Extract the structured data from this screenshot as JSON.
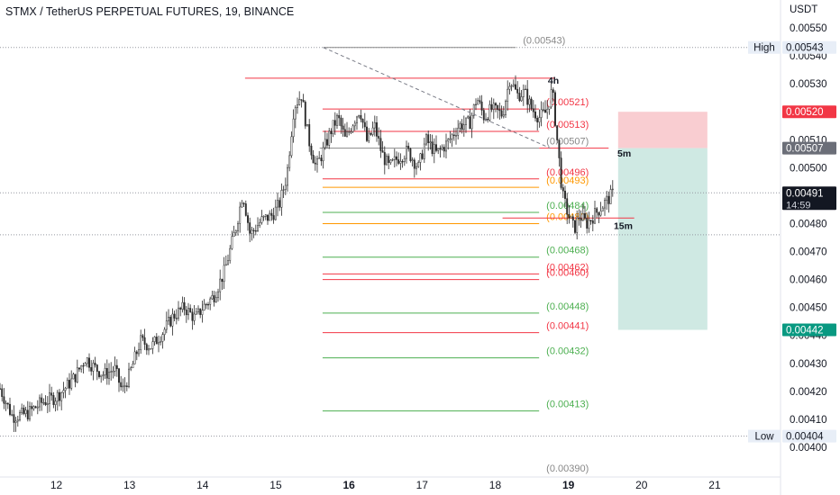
{
  "header": {
    "title": "STMX / TetherUS PERPETUAL FUTURES, 19, BINANCE"
  },
  "colors": {
    "candle": "#2a2a2a",
    "red": "#f23645",
    "green": "#4caf50",
    "orange": "#ff9800",
    "gray_label": "#888888",
    "stop_zone": "#f9cdd1",
    "target_zone": "#cfe9e3",
    "entry_tag": "#6b6e78",
    "stop_tag": "#f23645",
    "target_tag": "#089981",
    "last_tag": "#131722"
  },
  "chart_data": {
    "type": "candlestick",
    "symbol": "STMX / TetherUS PERPETUAL FUTURES",
    "timeframe": "19",
    "exchange": "BINANCE",
    "y_unit": "USDT",
    "ylim": [
      0.0039,
      0.00555
    ],
    "x_ticks": [
      {
        "label": "12",
        "x": 12,
        "bold": false
      },
      {
        "label": "13",
        "x": 13,
        "bold": false
      },
      {
        "label": "14",
        "x": 14,
        "bold": false
      },
      {
        "label": "15",
        "x": 15,
        "bold": false
      },
      {
        "label": "16",
        "x": 16,
        "bold": true
      },
      {
        "label": "17",
        "x": 17,
        "bold": false
      },
      {
        "label": "18",
        "x": 18,
        "bold": false
      },
      {
        "label": "19",
        "x": 19,
        "bold": true
      },
      {
        "label": "20",
        "x": 20,
        "bold": false
      },
      {
        "label": "21",
        "x": 21,
        "bold": false
      }
    ],
    "xlim": [
      11.23,
      21.9
    ],
    "y_ticks": [
      "0.00550",
      "0.00540",
      "0.00530",
      "0.00520",
      "0.00510",
      "0.00500",
      "0.00490",
      "0.00480",
      "0.00470",
      "0.00460",
      "0.00450",
      "0.00440",
      "0.00430",
      "0.00420",
      "0.00410",
      "0.00400"
    ],
    "price_path": [
      [
        11.23,
        0.00421
      ],
      [
        11.4,
        0.00411
      ],
      [
        11.6,
        0.00412
      ],
      [
        11.8,
        0.00416
      ],
      [
        12.0,
        0.00418
      ],
      [
        12.15,
        0.00422
      ],
      [
        12.25,
        0.00425
      ],
      [
        12.4,
        0.00432
      ],
      [
        12.5,
        0.00429
      ],
      [
        12.65,
        0.00426
      ],
      [
        12.8,
        0.00428
      ],
      [
        12.9,
        0.0042
      ],
      [
        13.0,
        0.00426
      ],
      [
        13.15,
        0.00438
      ],
      [
        13.3,
        0.00436
      ],
      [
        13.45,
        0.00441
      ],
      [
        13.6,
        0.00447
      ],
      [
        13.75,
        0.0045
      ],
      [
        13.9,
        0.00446
      ],
      [
        14.0,
        0.0045
      ],
      [
        14.15,
        0.00454
      ],
      [
        14.3,
        0.00463
      ],
      [
        14.45,
        0.00478
      ],
      [
        14.55,
        0.00491
      ],
      [
        14.65,
        0.00476
      ],
      [
        14.8,
        0.00481
      ],
      [
        14.95,
        0.00483
      ],
      [
        15.05,
        0.00487
      ],
      [
        15.15,
        0.00497
      ],
      [
        15.25,
        0.00522
      ],
      [
        15.35,
        0.00526
      ],
      [
        15.45,
        0.0051
      ],
      [
        15.55,
        0.005
      ],
      [
        15.65,
        0.00506
      ],
      [
        15.75,
        0.00513
      ],
      [
        15.85,
        0.00518
      ],
      [
        15.95,
        0.0051
      ],
      [
        16.05,
        0.00516
      ],
      [
        16.15,
        0.00521
      ],
      [
        16.25,
        0.00509
      ],
      [
        16.35,
        0.00515
      ],
      [
        16.45,
        0.00505
      ],
      [
        16.55,
        0.005
      ],
      [
        16.65,
        0.00503
      ],
      [
        16.8,
        0.00506
      ],
      [
        16.95,
        0.005
      ],
      [
        17.05,
        0.0051
      ],
      [
        17.2,
        0.00505
      ],
      [
        17.35,
        0.00509
      ],
      [
        17.5,
        0.00515
      ],
      [
        17.65,
        0.00516
      ],
      [
        17.75,
        0.00525
      ],
      [
        17.85,
        0.00518
      ],
      [
        17.95,
        0.00521
      ],
      [
        18.1,
        0.00519
      ],
      [
        18.2,
        0.00532
      ],
      [
        18.3,
        0.00526
      ],
      [
        18.4,
        0.00527
      ],
      [
        18.5,
        0.00521
      ],
      [
        18.6,
        0.00518
      ],
      [
        18.7,
        0.0052
      ],
      [
        18.78,
        0.00528
      ],
      [
        18.85,
        0.00509
      ],
      [
        18.92,
        0.0049
      ],
      [
        19.0,
        0.00483
      ],
      [
        19.08,
        0.00478
      ],
      [
        19.15,
        0.00483
      ],
      [
        19.25,
        0.0048
      ],
      [
        19.35,
        0.00483
      ],
      [
        19.45,
        0.00486
      ],
      [
        19.55,
        0.00489
      ],
      [
        19.62,
        0.00491
      ]
    ],
    "levels": [
      {
        "label": "(0.00543)",
        "value": 0.00543,
        "color": "gray",
        "x0": 15.65,
        "x1": 18.28
      },
      {
        "label": "(0.00521)",
        "value": 0.00521,
        "color": "red",
        "x0": 15.64,
        "x1": 18.6
      },
      {
        "label": "(0.00513)",
        "value": 0.00513,
        "color": "red",
        "x0": 15.64,
        "x1": 18.6
      },
      {
        "label": "(0.00507)",
        "value": 0.00507,
        "color": "gray",
        "x0": 15.6,
        "x1": 18.6
      },
      {
        "label": "(0.00496)",
        "value": 0.00496,
        "color": "red",
        "x0": 15.64,
        "x1": 18.6
      },
      {
        "label": "(0.00493)",
        "value": 0.00493,
        "color": "orange",
        "x0": 15.64,
        "x1": 18.6
      },
      {
        "label": "(0.00484)",
        "value": 0.00484,
        "color": "green",
        "x0": 15.64,
        "x1": 18.6
      },
      {
        "label": "(0.00480)",
        "value": 0.0048,
        "color": "orange",
        "x0": 15.64,
        "x1": 18.6
      },
      {
        "label": "(0.00468)",
        "value": 0.00468,
        "color": "green",
        "x0": 15.64,
        "x1": 18.6
      },
      {
        "label": "(0.00462)",
        "value": 0.00462,
        "color": "red",
        "x0": 15.64,
        "x1": 18.6
      },
      {
        "label": "(0.00460)",
        "value": 0.0046,
        "color": "red",
        "x0": 15.64,
        "x1": 18.6
      },
      {
        "label": "(0.00448)",
        "value": 0.00448,
        "color": "green",
        "x0": 15.64,
        "x1": 18.6
      },
      {
        "label": "(0.00441)",
        "value": 0.00441,
        "color": "red",
        "x0": 15.64,
        "x1": 18.6
      },
      {
        "label": "(0.00432)",
        "value": 0.00432,
        "color": "green",
        "x0": 15.64,
        "x1": 18.6
      },
      {
        "label": "(0.00413)",
        "value": 0.00413,
        "color": "green",
        "x0": 15.64,
        "x1": 18.6
      },
      {
        "label": "(0.00390)",
        "value": 0.0039,
        "color": "gray",
        "x0": 15.64,
        "x1": 18.6
      }
    ],
    "extra_lines": [
      {
        "value": 0.00532,
        "color": "red",
        "x0": 14.58,
        "x1": 18.82
      },
      {
        "value": 0.00507,
        "color": "red",
        "x0": 18.6,
        "x1": 19.55
      },
      {
        "value": 0.00482,
        "color": "red",
        "x0": 18.1,
        "x1": 19.9
      }
    ],
    "trendline": {
      "from": [
        15.65,
        0.00543
      ],
      "to": [
        18.75,
        0.00507
      ]
    },
    "dotted_lines": [
      0.00543,
      0.00491,
      0.00476,
      0.00404
    ],
    "timeframe_tags": [
      {
        "label": "4h",
        "x": 18.72,
        "y": 0.0053
      },
      {
        "label": "5m",
        "x": 19.67,
        "y": 0.00504
      },
      {
        "label": "15m",
        "x": 19.62,
        "y": 0.00478
      }
    ],
    "position": {
      "x0": 19.68,
      "x1": 20.9,
      "stop": 0.0052,
      "entry": 0.00507,
      "target": 0.00442
    },
    "axis_tags": [
      {
        "label": "0.00543",
        "value": 0.00543,
        "style": "soft",
        "side_label": "High"
      },
      {
        "label": "0.00520",
        "value": 0.0052,
        "style": "stop"
      },
      {
        "label": "0.00507",
        "value": 0.00507,
        "style": "entry"
      },
      {
        "label": "0.00491",
        "value": 0.00491,
        "style": "last",
        "sub": "14:59"
      },
      {
        "label": "0.00442",
        "value": 0.00442,
        "style": "target"
      },
      {
        "label": "0.00404",
        "value": 0.00404,
        "style": "soft",
        "side_label": "Low"
      }
    ]
  }
}
